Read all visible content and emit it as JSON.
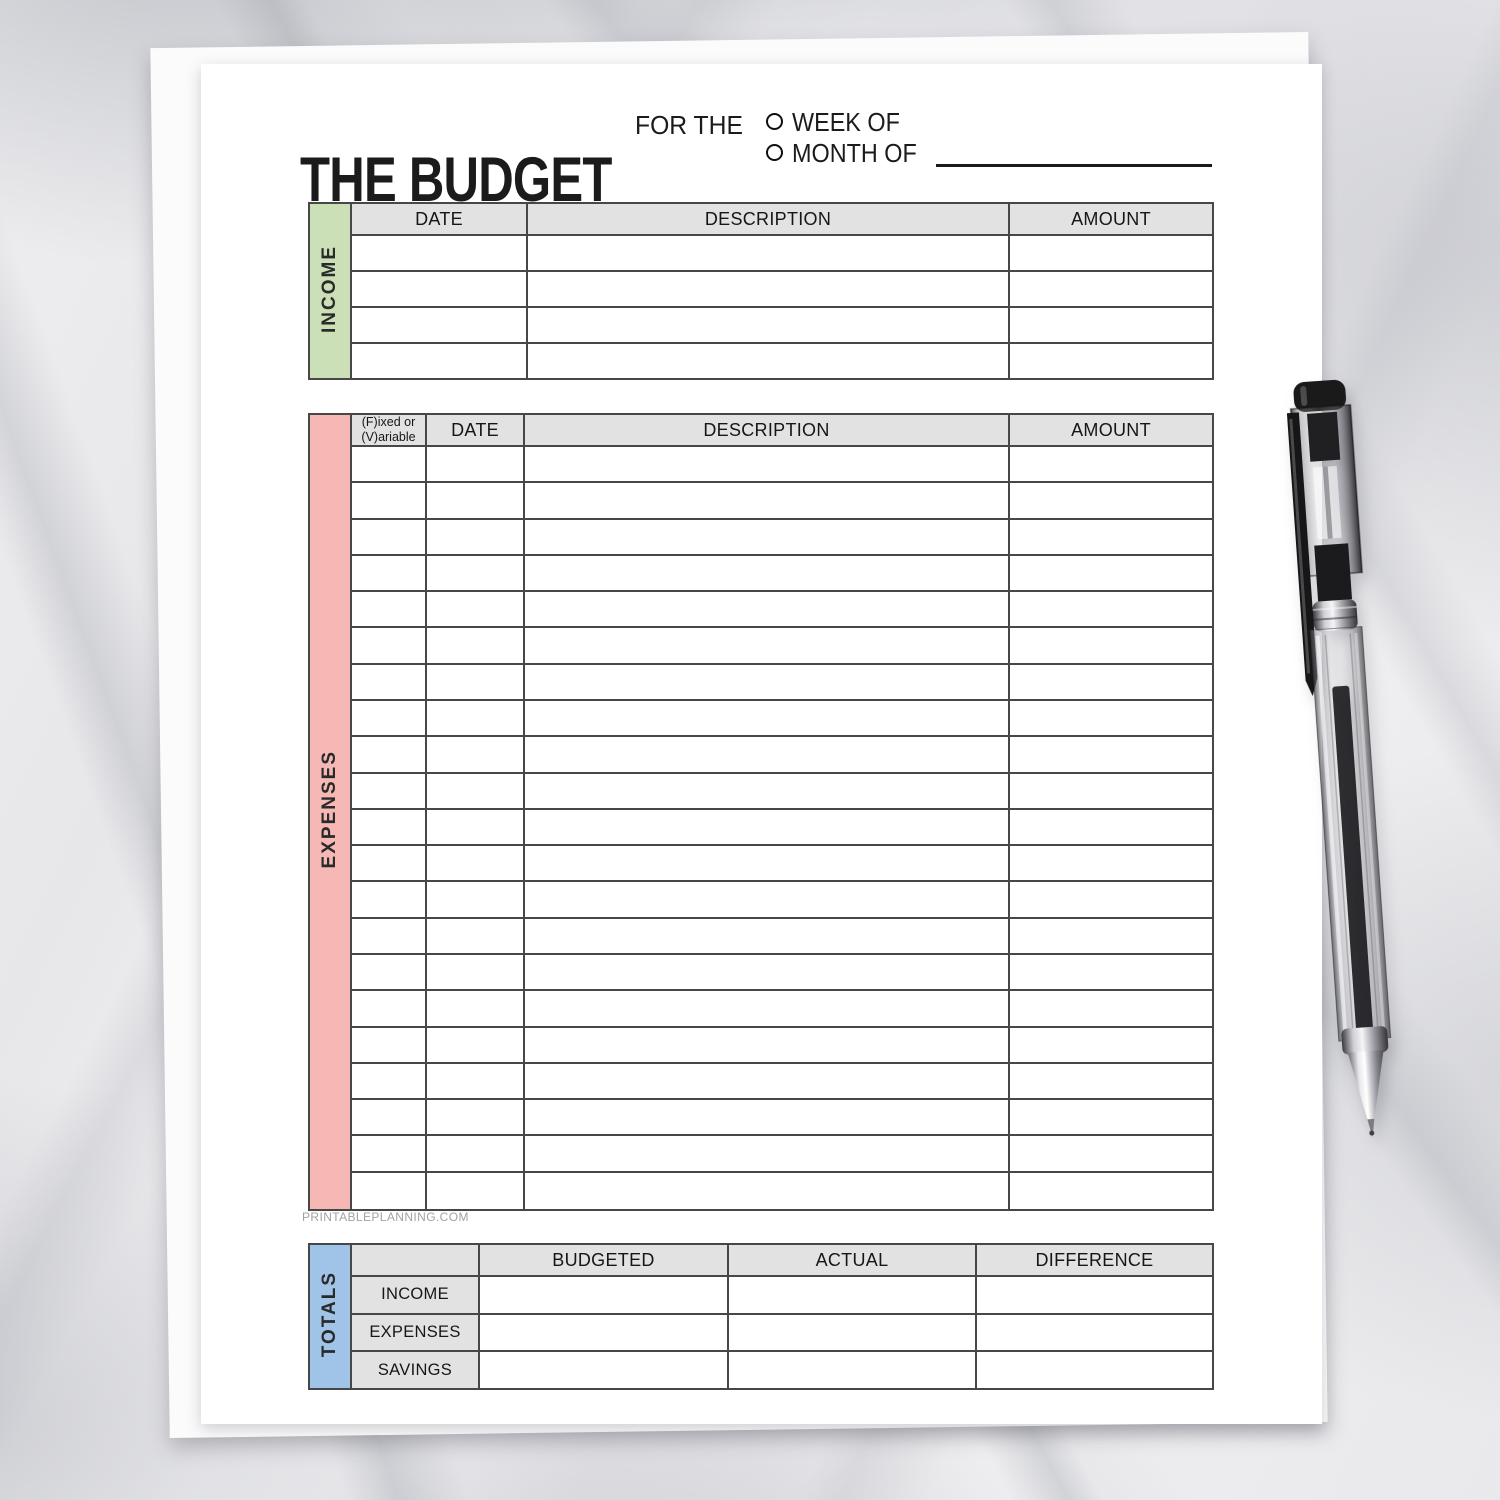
{
  "page": {
    "title": "THE BUDGET",
    "subtitle": "FOR THE",
    "period_options": [
      "WEEK OF",
      "MONTH OF"
    ],
    "watermark": "PRINTABLEPLANNING.COM"
  },
  "icons": {
    "radio": "empty-circle-radio",
    "pen": "transparent-black-ballpoint-pen"
  },
  "income": {
    "section_label": "INCOME",
    "columns": [
      "DATE",
      "DESCRIPTION",
      "AMOUNT"
    ],
    "empty_row_count": 4
  },
  "expenses": {
    "section_label": "EXPENSES",
    "fixed_variable_header": [
      "(F)ixed or",
      "(V)ariable"
    ],
    "columns": [
      "DATE",
      "DESCRIPTION",
      "AMOUNT"
    ],
    "empty_row_count": 21
  },
  "totals": {
    "section_label": "TOTALS",
    "columns": [
      "BUDGETED",
      "ACTUAL",
      "DIFFERENCE"
    ],
    "row_labels": [
      "INCOME",
      "EXPENSES",
      "SAVINGS"
    ]
  },
  "colors": {
    "income_accent": "#cbe0b6",
    "expenses_accent": "#f5b8b4",
    "totals_accent": "#a0c4e7",
    "header_cell_bg": "#e2e2e2",
    "table_border": "#474747",
    "paper": "#ffffff"
  }
}
